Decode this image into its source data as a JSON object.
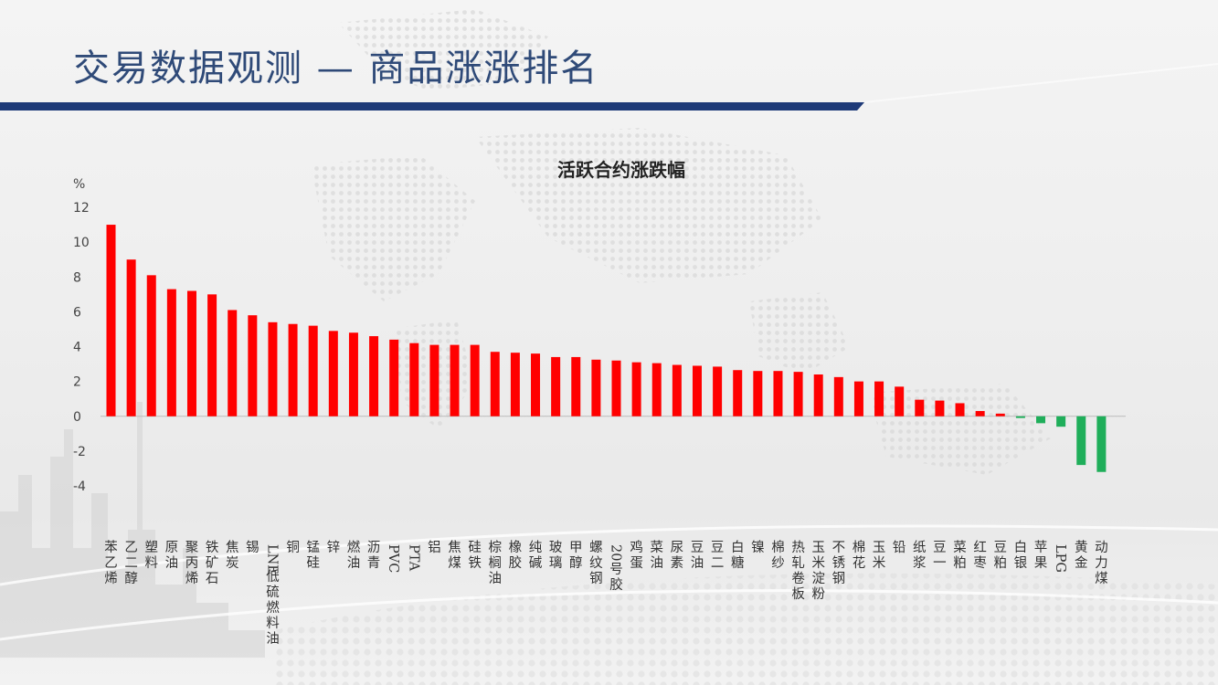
{
  "page": {
    "title": "交易数据观测 — 商品涨涨排名",
    "accent_color": "#1e3a78",
    "up_color": "#ff0000",
    "down_color": "#1fae5a"
  },
  "chart_data": {
    "type": "bar",
    "title": "活跃合约涨跌幅",
    "ylabel": "%",
    "xlabel": "",
    "ylim": [
      -4,
      12
    ],
    "yticks": [
      12,
      10,
      8,
      6,
      4,
      2,
      0,
      -2,
      -4
    ],
    "grid": false,
    "legend": "none",
    "categories": [
      "苯乙烯",
      "乙二醇",
      "塑料",
      "原油",
      "聚丙烯",
      "铁矿石",
      "焦炭",
      "锡",
      "LNE低硫燃料油",
      "铜",
      "锰硅",
      "锌",
      "燃油",
      "沥青",
      "PVC",
      "PTA",
      "铝",
      "焦煤",
      "硅铁",
      "棕榈油",
      "橡胶",
      "纯碱",
      "玻璃",
      "甲醇",
      "螺纹钢",
      "20号胶",
      "鸡蛋",
      "菜油",
      "尿素",
      "豆油",
      "豆二",
      "白糖",
      "镍",
      "棉纱",
      "热轧卷板",
      "玉米淀粉",
      "不锈钢",
      "棉花",
      "玉米",
      "铅",
      "纸浆",
      "豆一",
      "菜粕",
      "红枣",
      "豆粕",
      "白银",
      "苹果",
      "LPG",
      "黄金",
      "动力煤"
    ],
    "values": [
      11.0,
      9.0,
      8.1,
      7.3,
      7.2,
      7.0,
      6.1,
      5.8,
      5.4,
      5.3,
      5.2,
      4.9,
      4.8,
      4.6,
      4.4,
      4.2,
      4.1,
      4.1,
      4.1,
      3.7,
      3.65,
      3.6,
      3.4,
      3.4,
      3.25,
      3.2,
      3.1,
      3.05,
      2.95,
      2.9,
      2.85,
      2.65,
      2.6,
      2.6,
      2.55,
      2.4,
      2.25,
      2.0,
      2.0,
      1.7,
      0.95,
      0.9,
      0.75,
      0.3,
      0.15,
      -0.1,
      -0.4,
      -0.6,
      -2.8,
      -3.2
    ]
  }
}
